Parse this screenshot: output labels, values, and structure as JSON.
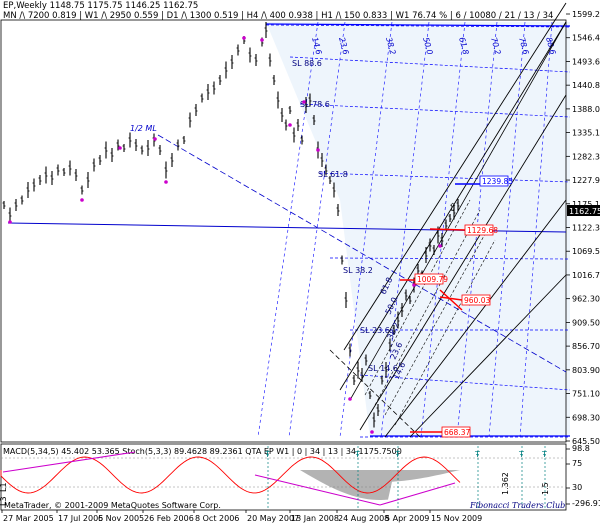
{
  "header": {
    "symbol_line": "EP,Weekly  1148.75  1175.75  1146.25  1162.75",
    "stats_line": "MN /\\ 7200   0.819  |  W1 /\\ 2950   0.559  |  D1 /\\ 1300   0.519  |  H4 /\\ 400   0.938  |  H1 /\\ 150   0.833  |  W1   76.74 %  |  6 / 10080 / 21 / 13 / 34"
  },
  "price_axis": {
    "ticks": [
      "1599.20",
      "1546.45",
      "1493.60",
      "1440.80",
      "1388.00",
      "1335.15",
      "1282.35",
      "1227.95",
      "1175.15",
      "1122.35",
      "1069.55",
      "1016.75",
      "962.30",
      "909.50",
      "856.70",
      "803.90",
      "751.10",
      "698.30",
      "645.50"
    ],
    "current_price": "1162.75"
  },
  "indicator_axis": {
    "ticks": [
      "98.8",
      "75",
      "30",
      "-296.914"
    ]
  },
  "time_axis": {
    "ticks": [
      "27 Mar 2005",
      "17 Jul 2005",
      "6 Nov 2005",
      "26 Feb 2006",
      "8 Oct 2006",
      "20 May 2007",
      "13 Jan 2008",
      "24 Aug 2008",
      "5 Apr 2009",
      "15 Nov 2009"
    ]
  },
  "annotations": {
    "half_ml": "1/2 ML",
    "sl_labels": [
      "SL 88.6",
      "SL 78.6",
      "SL 61.8",
      "SL 38.2",
      "SL 23.6",
      "SL 14.6"
    ],
    "fib_top": [
      "14.6",
      "23.6",
      "38.2",
      "50.0",
      "61.8",
      "70.2",
      "78.6",
      "88.6"
    ],
    "fib_diag": [
      "61.8",
      "50.0",
      "38.2",
      "23.6",
      "14.6"
    ],
    "price_boxes": {
      "blue": "1239.85",
      "red_upper": "1129.68",
      "red_mid": "1009.79",
      "red_lower": "960.03",
      "red_bottom": "668.37"
    }
  },
  "indicator": {
    "label": "MACD(5,34,5) 45.402 53.365  Stoch(5,3,3) 89.4628 89.2361  QTA EP W1 | 0 | 34 | 13 | 34 1175.7500",
    "left_labels": [
      "L1",
      "L3"
    ],
    "mid_labels": [
      "1.362",
      "1.5"
    ]
  },
  "footer": {
    "copyright": "MetaTrader, © 2001-2009 MetaQuotes Software Corp.",
    "watermark": "Fibonacci Traders Club"
  },
  "colors": {
    "price_bars": "#000000",
    "median_line": "#0000cc",
    "channel": "#000000",
    "fib_grid": "#0000ff",
    "red_lines": "#ff0000",
    "macd_hist": "#808080",
    "stoch": "#ff0000",
    "pivot_dots": "#cc00cc",
    "signal_marks": "#008080"
  }
}
